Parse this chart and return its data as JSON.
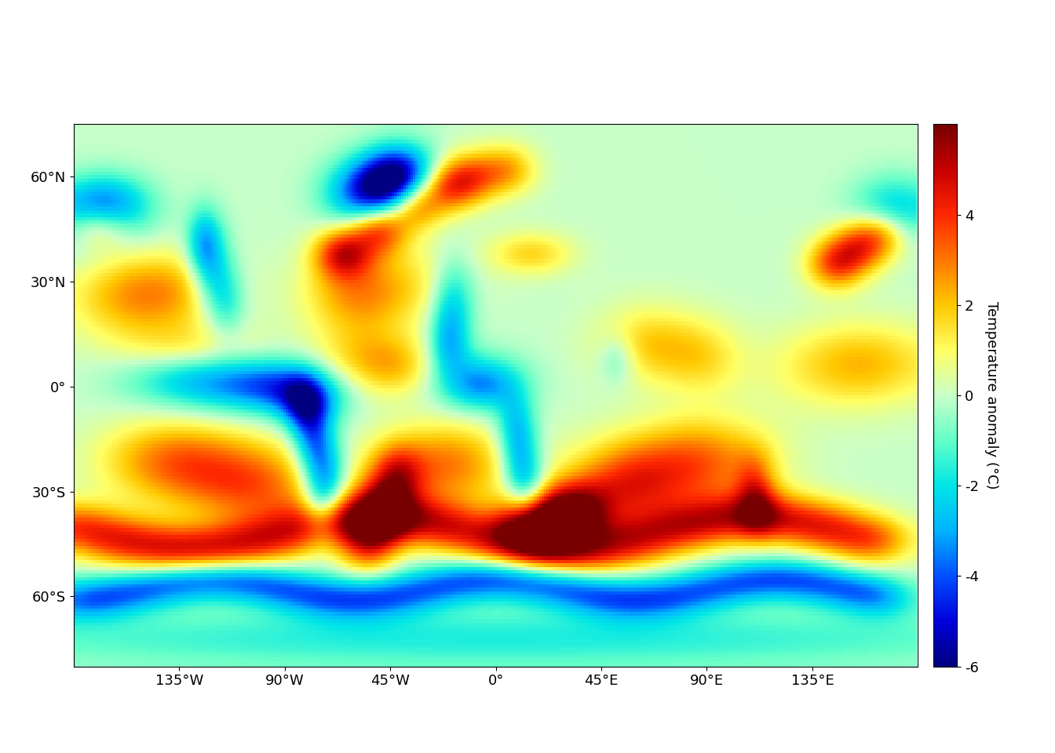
{
  "colorbar_label": "Temperature anomaly (°C)",
  "vmin": -6,
  "vmax": 6,
  "cbar_ticks": [
    -6,
    -4,
    -2,
    0,
    2,
    4
  ],
  "lon_ticks": [
    -135,
    -90,
    -45,
    0,
    45,
    90,
    135
  ],
  "lat_ticks": [
    -60,
    -30,
    0,
    30,
    60
  ],
  "lon_tick_labels": [
    "135°W",
    "90°W",
    "45°W",
    "0°",
    "45°E",
    "90°E",
    "135°E"
  ],
  "lat_tick_labels": [
    "60°S",
    "30°S",
    "0°",
    "30°N",
    "60°N"
  ],
  "land_color": "#808080",
  "background_color": "#ffffff",
  "figsize": [
    13.44,
    9.6
  ],
  "dpi": 100,
  "colormap_nodes": [
    [
      0.0,
      [
        0,
        0,
        128
      ]
    ],
    [
      0.083,
      [
        0,
        0,
        220
      ]
    ],
    [
      0.167,
      [
        0,
        80,
        255
      ]
    ],
    [
      0.25,
      [
        0,
        180,
        255
      ]
    ],
    [
      0.333,
      [
        0,
        230,
        230
      ]
    ],
    [
      0.417,
      [
        100,
        255,
        200
      ]
    ],
    [
      0.5,
      [
        200,
        255,
        200
      ]
    ],
    [
      0.583,
      [
        255,
        255,
        100
      ]
    ],
    [
      0.667,
      [
        255,
        200,
        0
      ]
    ],
    [
      0.75,
      [
        255,
        120,
        0
      ]
    ],
    [
      0.833,
      [
        255,
        40,
        0
      ]
    ],
    [
      0.917,
      [
        200,
        0,
        0
      ]
    ],
    [
      1.0,
      [
        120,
        0,
        0
      ]
    ]
  ]
}
